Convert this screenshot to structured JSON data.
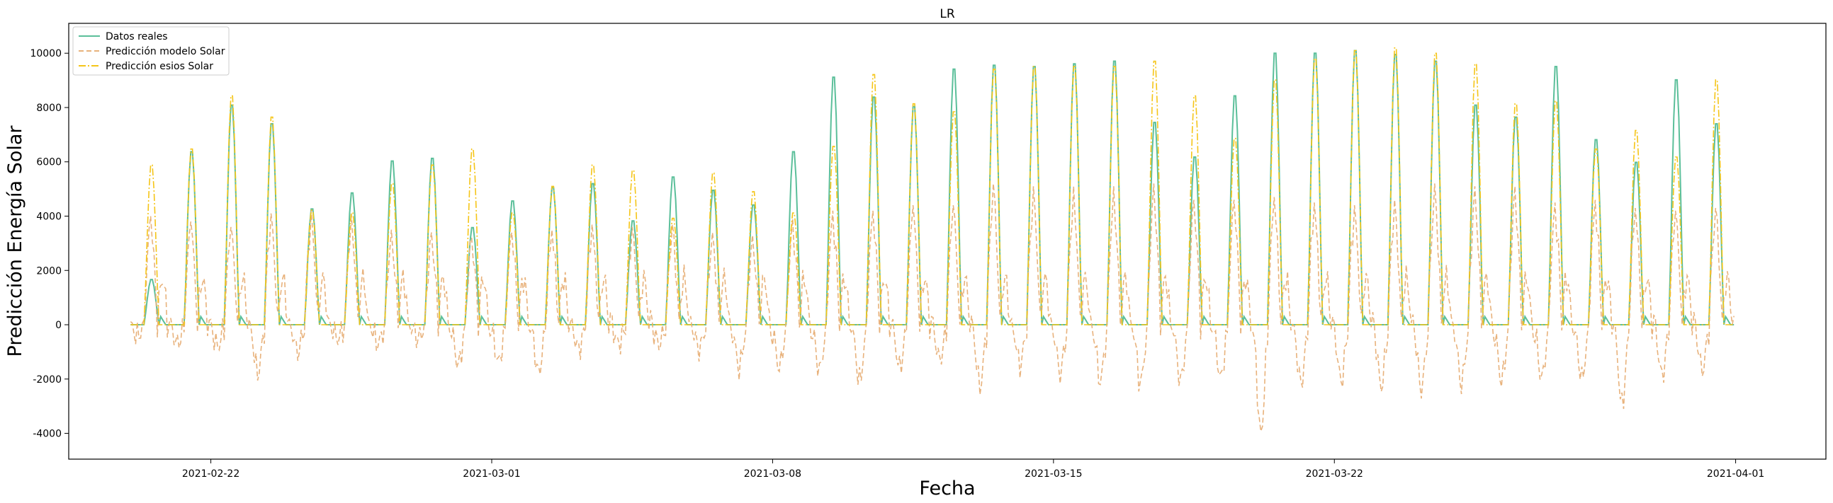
{
  "chart_data": {
    "type": "line",
    "title": "LR",
    "xlabel": "Fecha",
    "ylabel": "Predicción Energía Solar",
    "xlim": [
      "2021-02-18T11:00",
      "2021-04-03T06:00"
    ],
    "ylim": [
      -4950,
      11100
    ],
    "x_ticks": [
      "2021-02-22",
      "2021-03-01",
      "2021-03-08",
      "2021-03-15",
      "2021-03-22",
      "2021-04-01"
    ],
    "y_ticks": [
      -4000,
      -2000,
      0,
      2000,
      4000,
      6000,
      8000,
      10000
    ],
    "legend_position": "upper-left",
    "grid": false,
    "days": [
      "2021-02-20",
      "2021-02-21",
      "2021-02-22",
      "2021-02-23",
      "2021-02-24",
      "2021-02-25",
      "2021-02-26",
      "2021-02-27",
      "2021-02-28",
      "2021-03-01",
      "2021-03-02",
      "2021-03-03",
      "2021-03-04",
      "2021-03-05",
      "2021-03-06",
      "2021-03-07",
      "2021-03-08",
      "2021-03-09",
      "2021-03-10",
      "2021-03-11",
      "2021-03-12",
      "2021-03-13",
      "2021-03-14",
      "2021-03-15",
      "2021-03-16",
      "2021-03-17",
      "2021-03-18",
      "2021-03-19",
      "2021-03-20",
      "2021-03-21",
      "2021-03-22",
      "2021-03-23",
      "2021-03-24",
      "2021-03-25",
      "2021-03-26",
      "2021-03-27",
      "2021-03-28",
      "2021-03-29",
      "2021-03-30",
      "2021-03-31"
    ],
    "series": [
      {
        "name": "Datos reales",
        "color": "#5bbf9a",
        "style": "solid",
        "daily_peak": [
          1700,
          6500,
          8250,
          7550,
          4350,
          4950,
          6150,
          6250,
          3650,
          4650,
          5150,
          5300,
          3900,
          5550,
          5050,
          4500,
          6500,
          9300,
          8550,
          8200,
          9600,
          9750,
          9700,
          9800,
          9900,
          7600,
          6300,
          8600,
          10200,
          10200,
          10300,
          10150,
          9900,
          8250,
          7800,
          9700,
          6950,
          6100,
          9200,
          7550
        ]
      },
      {
        "name": "Predicción modelo Solar",
        "color": "#e8b27c",
        "style": "dashed",
        "daily_peak": [
          4000,
          3800,
          3600,
          4100,
          4200,
          4100,
          3500,
          3400,
          3200,
          3400,
          3500,
          3700,
          3600,
          3700,
          3400,
          3300,
          3900,
          4200,
          4200,
          4400,
          4400,
          5200,
          5100,
          5100,
          5100,
          5200,
          4600,
          4600,
          4700,
          4500,
          4400,
          4600,
          5200,
          5100,
          5100,
          4500,
          4600,
          4300,
          4200,
          4300
        ],
        "daily_min": [
          -400,
          -700,
          -800,
          -1800,
          -1000,
          -500,
          -700,
          -500,
          -1500,
          -1400,
          -1800,
          -900,
          -700,
          -700,
          -900,
          -1600,
          -1600,
          -1700,
          -2100,
          -1600,
          -1300,
          -2300,
          -1500,
          -1800,
          -2100,
          -2200,
          -2100,
          -2000,
          -4100,
          -2200,
          -2100,
          -2300,
          -2400,
          -2200,
          -2100,
          -2000,
          -2000,
          -3000,
          -1900,
          -1700
        ]
      },
      {
        "name": "Predicción esios Solar",
        "color": "#f5c518",
        "style": "dashdot",
        "daily_peak": [
          6000,
          6600,
          8600,
          7800,
          4300,
          4200,
          5300,
          6000,
          6600,
          4200,
          5200,
          6000,
          5800,
          4000,
          5700,
          5000,
          4200,
          6700,
          9400,
          8300,
          8000,
          9600,
          9700,
          9700,
          9700,
          9900,
          8600,
          7000,
          9200,
          10000,
          10300,
          10400,
          10200,
          9800,
          8300,
          8400,
          6600,
          7300,
          6300,
          9200
        ]
      }
    ]
  }
}
